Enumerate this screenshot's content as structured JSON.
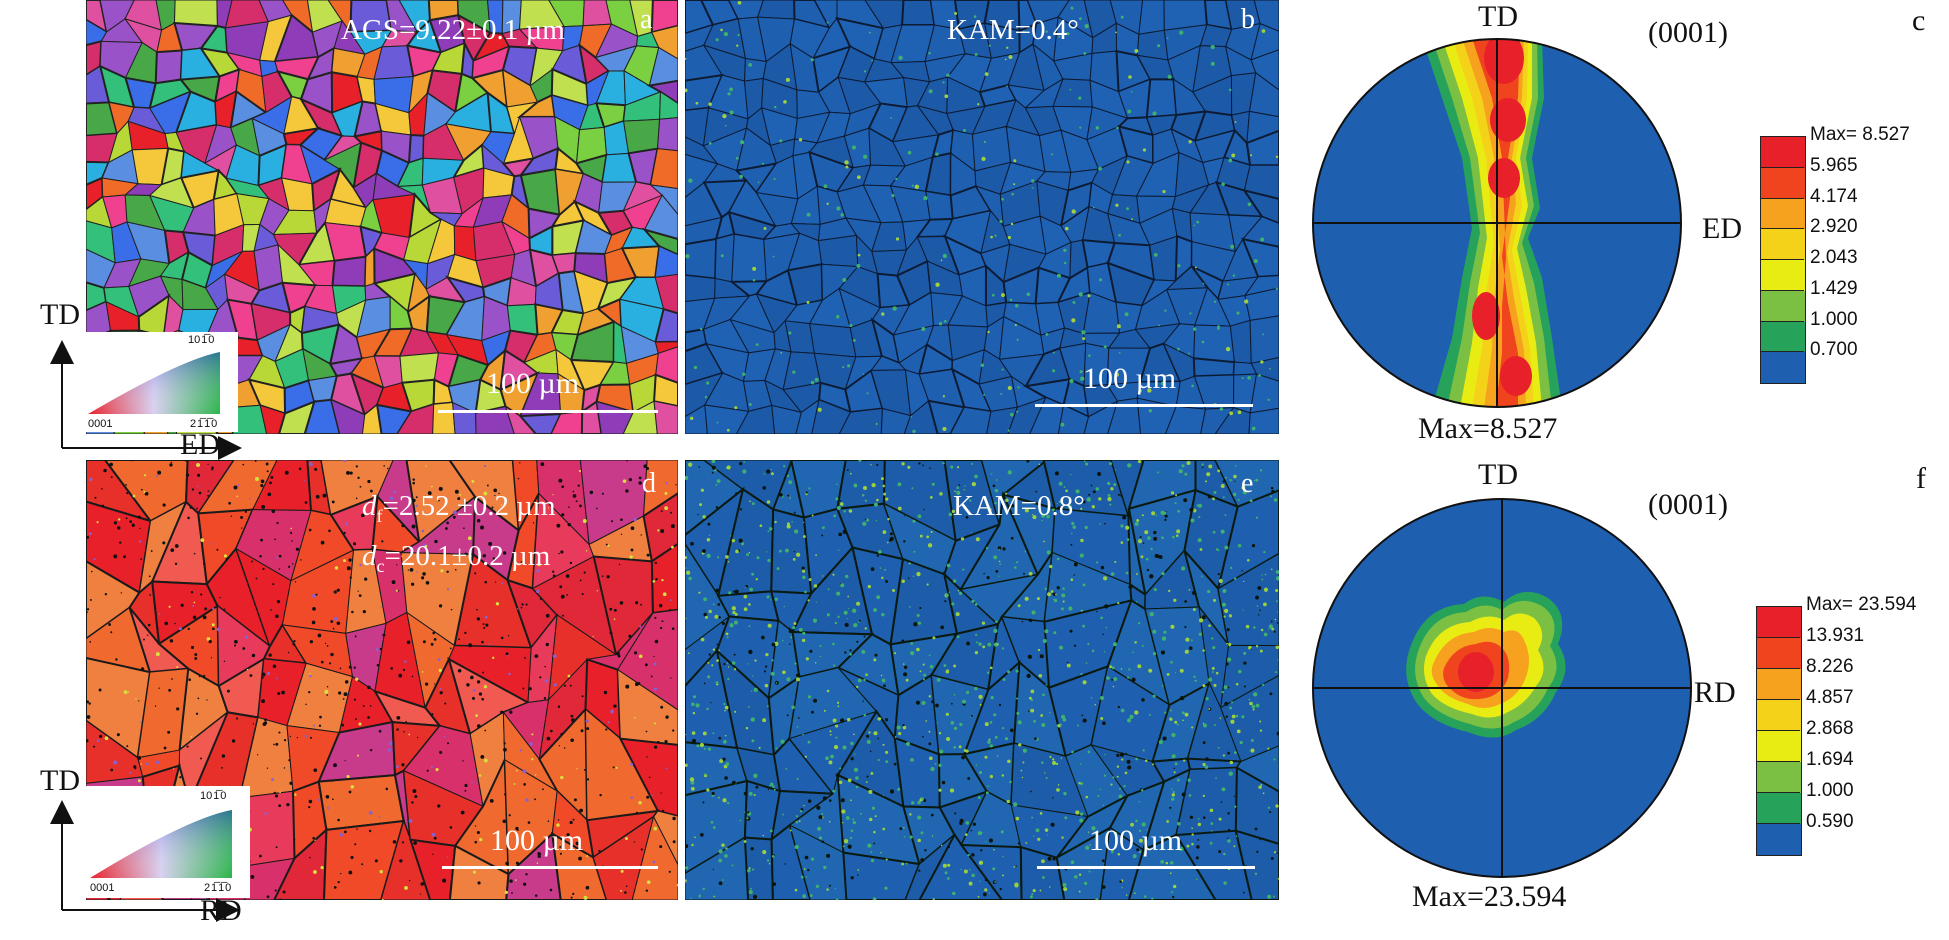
{
  "panels": {
    "a": {
      "letter": "a",
      "label": "AGS=9.22±0.1 µm",
      "scale": "100 µm"
    },
    "b": {
      "letter": "b",
      "label": "KAM=0.4°",
      "scale": "100 µm"
    },
    "c": {
      "letter": "c",
      "plane": "(0001)",
      "top_axis": "TD",
      "side_axis": "ED",
      "max_label": "Max=8.527",
      "legend": [
        "Max= 8.527",
        "5.965",
        "4.174",
        "2.920",
        "2.043",
        "1.429",
        "1.000",
        "0.700"
      ]
    },
    "d": {
      "letter": "d",
      "df_symbol": "d",
      "df_sub": "f",
      "df_value": "=2.52 ±0.2 µm",
      "dc_symbol": "d",
      "dc_sub": "c",
      "dc_value": "=20.1±0.2 µm",
      "scale": "100 µm"
    },
    "e": {
      "letter": "e",
      "label": "KAM=0.8°",
      "scale": "100 µm"
    },
    "f": {
      "letter": "f",
      "plane": "(0001)",
      "top_axis": "TD",
      "side_axis": "RD",
      "max_label": "Max=23.594",
      "legend": [
        "Max= 23.594",
        "13.931",
        "8.226",
        "4.857",
        "2.868",
        "1.694",
        "1.000",
        "0.590"
      ]
    }
  },
  "axes_top": {
    "vertical": "TD",
    "horizontal": "ED"
  },
  "axes_bottom": {
    "vertical": "TD",
    "horizontal": "RD"
  },
  "ipf_key": {
    "top": "10 1̅ 0",
    "bottom_left": "0001",
    "bottom_right": "2 1̅ 1̅ 0"
  },
  "legend_colors": [
    "#e8202a",
    "#f0441f",
    "#f7a21e",
    "#f5d21a",
    "#e9ec12",
    "#7bc043",
    "#27a25b",
    "#1e5fb0"
  ]
}
